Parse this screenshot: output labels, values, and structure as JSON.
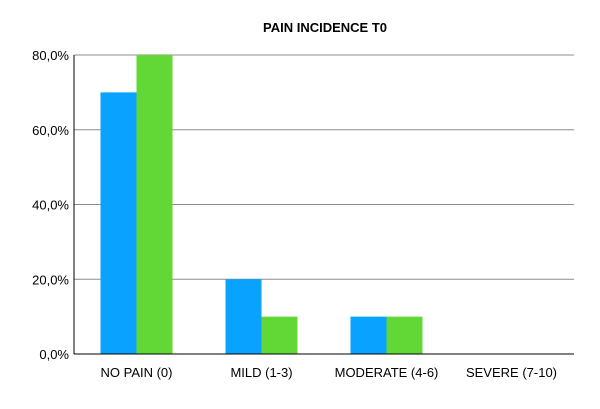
{
  "chart_data": {
    "type": "bar",
    "title": "PAIN INCIDENCE T0",
    "xlabel": "",
    "ylabel": "",
    "categories": [
      "NO PAIN (0)",
      "MILD (1-3)",
      "MODERATE (4-6)",
      "SEVERE (7-10)"
    ],
    "series": [
      {
        "values": [
          70,
          20,
          10,
          0
        ],
        "color": "#0aa2ff"
      },
      {
        "values": [
          80,
          10,
          10,
          0
        ],
        "color": "#61d836"
      }
    ],
    "ylim": [
      0,
      80
    ],
    "yticks": [
      0,
      20,
      40,
      60,
      80
    ],
    "ytick_labels": [
      "0,0%",
      "20,0%",
      "40,0%",
      "60,0%",
      "80,0%"
    ],
    "grid": true,
    "legend": "none"
  }
}
